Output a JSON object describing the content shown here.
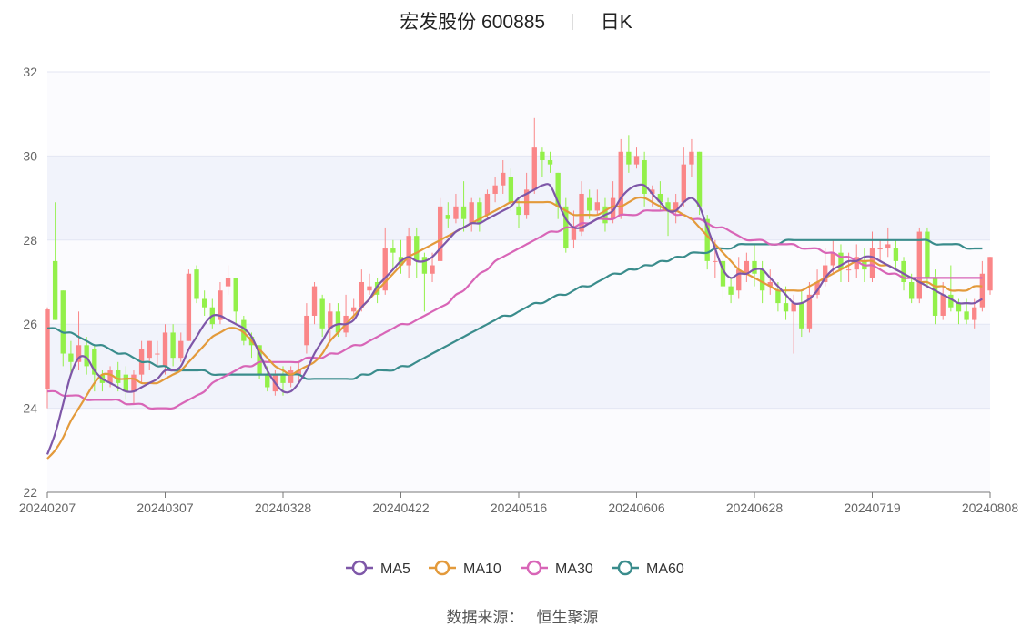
{
  "title": {
    "name": "宏发股份",
    "code": "600885",
    "period": "日K"
  },
  "source": {
    "label": "数据来源：",
    "value": "恒生聚源"
  },
  "colors": {
    "up": "#fa8688",
    "down": "#93f04a",
    "grid": "#e3e6f3",
    "band": "#f1f3fb",
    "axis": "#666666"
  },
  "chart_data": {
    "type": "candlestick",
    "ylim": [
      22,
      32
    ],
    "yticks": [
      22,
      24,
      26,
      28,
      30,
      32
    ],
    "xticks": [
      "20240207",
      "20240307",
      "20240328",
      "20240422",
      "20240516",
      "20240606",
      "20240628",
      "20240719",
      "20240808"
    ],
    "grid": true,
    "legend_position": "bottom",
    "candles": [
      [
        24.45,
        26.35,
        26.4,
        24.0
      ],
      [
        27.5,
        26.1,
        28.9,
        26.1
      ],
      [
        26.8,
        25.3,
        26.8,
        25.0
      ],
      [
        25.3,
        25.1,
        25.6,
        24.8
      ],
      [
        25.1,
        25.5,
        26.3,
        24.9
      ],
      [
        25.5,
        25.0,
        25.7,
        24.8
      ],
      [
        25.4,
        24.8,
        25.5,
        24.4
      ],
      [
        24.8,
        24.6,
        24.9,
        24.4
      ],
      [
        24.6,
        24.9,
        25.0,
        24.5
      ],
      [
        24.9,
        24.6,
        25.1,
        24.4
      ],
      [
        24.8,
        24.4,
        25.0,
        24.2
      ],
      [
        24.4,
        24.8,
        24.9,
        24.1
      ],
      [
        24.8,
        25.4,
        25.6,
        24.6
      ],
      [
        25.2,
        25.6,
        25.6,
        24.9
      ],
      [
        25.3,
        25.3,
        25.6,
        25.0
      ],
      [
        25.0,
        25.8,
        26.0,
        24.8
      ],
      [
        25.8,
        25.2,
        26.0,
        25.0
      ],
      [
        25.2,
        25.6,
        25.8,
        25.1
      ],
      [
        25.6,
        27.2,
        27.3,
        25.6
      ],
      [
        27.3,
        26.6,
        27.4,
        26.5
      ],
      [
        26.6,
        26.4,
        26.8,
        26.2
      ],
      [
        26.4,
        26.0,
        26.6,
        25.9
      ],
      [
        26.1,
        26.8,
        27.0,
        26.0
      ],
      [
        26.9,
        27.1,
        27.4,
        26.7
      ],
      [
        27.1,
        26.3,
        27.1,
        26.0
      ],
      [
        26.1,
        25.6,
        26.2,
        25.5
      ],
      [
        25.7,
        25.5,
        25.8,
        25.2
      ],
      [
        25.5,
        24.8,
        25.5,
        24.7
      ],
      [
        24.8,
        24.5,
        25.0,
        24.4
      ],
      [
        24.4,
        24.8,
        24.9,
        24.3
      ],
      [
        24.8,
        24.6,
        25.0,
        24.3
      ],
      [
        24.6,
        24.9,
        25.0,
        24.5
      ],
      [
        24.8,
        24.9,
        25.1,
        24.6
      ],
      [
        25.5,
        26.2,
        26.5,
        25.3
      ],
      [
        26.2,
        26.9,
        27.0,
        26.0
      ],
      [
        26.6,
        25.9,
        26.7,
        25.7
      ],
      [
        25.9,
        26.3,
        26.5,
        25.6
      ],
      [
        26.3,
        25.8,
        26.5,
        25.7
      ],
      [
        25.8,
        26.2,
        26.7,
        25.7
      ],
      [
        26.3,
        26.4,
        26.6,
        26.1
      ],
      [
        26.4,
        27.0,
        27.3,
        26.3
      ],
      [
        26.8,
        26.9,
        27.2,
        26.7
      ],
      [
        27.0,
        26.7,
        27.1,
        26.5
      ],
      [
        26.8,
        27.8,
        28.3,
        26.7
      ],
      [
        27.8,
        27.7,
        28.0,
        27.3
      ],
      [
        27.6,
        27.4,
        28.0,
        27.2
      ],
      [
        27.4,
        28.1,
        28.3,
        27.1
      ],
      [
        28.1,
        27.5,
        28.3,
        27.1
      ],
      [
        27.6,
        27.2,
        27.7,
        26.3
      ],
      [
        27.2,
        27.4,
        27.7,
        27.0
      ],
      [
        27.5,
        28.8,
        29.0,
        27.5
      ],
      [
        28.6,
        28.5,
        28.9,
        28.3
      ],
      [
        28.5,
        28.8,
        29.1,
        28.4
      ],
      [
        28.8,
        28.5,
        29.4,
        28.2
      ],
      [
        28.4,
        28.9,
        29.0,
        28.2
      ],
      [
        28.9,
        28.4,
        29.0,
        28.2
      ],
      [
        28.6,
        29.1,
        29.2,
        28.5
      ],
      [
        29.1,
        29.3,
        29.5,
        28.9
      ],
      [
        29.3,
        29.6,
        29.9,
        29.1
      ],
      [
        29.5,
        28.9,
        29.7,
        28.7
      ],
      [
        28.8,
        28.6,
        29.0,
        28.3
      ],
      [
        28.6,
        29.2,
        29.6,
        28.5
      ],
      [
        29.2,
        30.2,
        30.9,
        29.1
      ],
      [
        30.1,
        29.9,
        30.2,
        29.5
      ],
      [
        29.9,
        29.8,
        30.1,
        29.6
      ],
      [
        29.6,
        28.8,
        29.6,
        28.5
      ],
      [
        28.8,
        27.8,
        29.0,
        27.7
      ],
      [
        28.0,
        28.3,
        28.7,
        27.8
      ],
      [
        28.2,
        29.1,
        29.4,
        28.1
      ],
      [
        29.0,
        28.7,
        29.2,
        28.5
      ],
      [
        28.7,
        28.9,
        29.2,
        28.6
      ],
      [
        28.8,
        28.4,
        29.0,
        28.2
      ],
      [
        28.5,
        29.0,
        29.4,
        28.4
      ],
      [
        28.6,
        30.1,
        30.4,
        28.5
      ],
      [
        30.1,
        29.8,
        30.5,
        29.6
      ],
      [
        29.8,
        30.0,
        30.2,
        29.7
      ],
      [
        29.9,
        29.1,
        30.1,
        28.8
      ],
      [
        29.1,
        29.2,
        29.3,
        28.8
      ],
      [
        29.1,
        28.9,
        29.4,
        28.7
      ],
      [
        28.9,
        28.7,
        29.0,
        28.1
      ],
      [
        28.7,
        28.9,
        29.1,
        28.4
      ],
      [
        28.9,
        29.8,
        30.2,
        28.8
      ],
      [
        29.8,
        30.1,
        30.4,
        29.5
      ],
      [
        30.1,
        28.8,
        30.1,
        28.6
      ],
      [
        28.5,
        27.5,
        28.6,
        27.3
      ],
      [
        27.5,
        27.5,
        28.0,
        27.1
      ],
      [
        27.5,
        26.9,
        27.6,
        26.6
      ],
      [
        26.9,
        26.7,
        27.1,
        26.5
      ],
      [
        26.8,
        27.3,
        27.6,
        26.6
      ],
      [
        27.2,
        27.5,
        27.7,
        27.0
      ],
      [
        27.5,
        27.2,
        27.9,
        26.9
      ],
      [
        27.3,
        26.8,
        27.5,
        26.5
      ],
      [
        26.9,
        27.0,
        27.3,
        26.7
      ],
      [
        26.8,
        26.5,
        27.0,
        26.3
      ],
      [
        26.5,
        26.3,
        26.9,
        26.1
      ],
      [
        26.3,
        26.5,
        26.7,
        25.3
      ],
      [
        26.5,
        25.9,
        26.8,
        25.7
      ],
      [
        25.9,
        26.7,
        27.0,
        25.8
      ],
      [
        26.7,
        27.0,
        27.3,
        26.6
      ],
      [
        27.0,
        27.4,
        27.8,
        26.9
      ],
      [
        27.4,
        27.7,
        28.0,
        27.2
      ],
      [
        27.7,
        27.3,
        27.9,
        27.0
      ],
      [
        27.3,
        27.3,
        27.7,
        27.0
      ],
      [
        27.3,
        27.6,
        27.9,
        27.1
      ],
      [
        27.5,
        27.3,
        27.8,
        27.0
      ],
      [
        27.1,
        27.8,
        28.2,
        27.0
      ],
      [
        27.8,
        27.8,
        28.0,
        27.5
      ],
      [
        27.8,
        27.9,
        28.3,
        27.6
      ],
      [
        27.8,
        27.5,
        28.0,
        27.3
      ],
      [
        27.5,
        27.0,
        27.6,
        26.8
      ],
      [
        27.0,
        26.6,
        27.2,
        26.5
      ],
      [
        26.6,
        28.2,
        28.3,
        26.5
      ],
      [
        28.2,
        27.1,
        28.3,
        26.9
      ],
      [
        27.1,
        26.2,
        27.3,
        26.0
      ],
      [
        26.2,
        26.7,
        27.0,
        26.1
      ],
      [
        26.7,
        26.4,
        27.4,
        26.3
      ],
      [
        26.5,
        26.3,
        26.6,
        26.0
      ],
      [
        26.3,
        26.1,
        26.6,
        26.0
      ],
      [
        26.1,
        26.4,
        26.6,
        25.9
      ],
      [
        26.4,
        27.2,
        27.5,
        26.3
      ],
      [
        26.8,
        27.6,
        27.6,
        26.7
      ]
    ],
    "series": [
      {
        "name": "MA5",
        "color": "#7e57a8",
        "values": [
          22.9,
          23.4,
          24.1,
          24.8,
          25.2,
          25.2,
          24.9,
          24.7,
          24.6,
          24.5,
          24.4,
          24.4,
          24.5,
          24.6,
          24.7,
          24.9,
          24.9,
          25.0,
          25.4,
          25.7,
          26.0,
          26.2,
          26.2,
          26.1,
          26.0,
          25.9,
          25.7,
          25.3,
          24.9,
          24.6,
          24.4,
          24.4,
          24.6,
          24.9,
          25.3,
          25.6,
          25.9,
          26.0,
          26.0,
          26.1,
          26.4,
          26.6,
          26.9,
          27.1,
          27.3,
          27.5,
          27.6,
          27.5,
          27.5,
          27.6,
          27.8,
          28.0,
          28.2,
          28.3,
          28.4,
          28.4,
          28.5,
          28.6,
          28.7,
          28.8,
          29.0,
          29.1,
          29.2,
          29.3,
          29.3,
          28.9,
          28.5,
          28.3,
          28.3,
          28.4,
          28.5,
          28.6,
          28.7,
          29.0,
          29.2,
          29.3,
          29.3,
          29.1,
          28.9,
          28.7,
          28.7,
          28.9,
          29.0,
          28.8,
          28.3,
          27.8,
          27.3,
          27.1,
          27.2,
          27.2,
          27.3,
          27.3,
          27.1,
          26.9,
          26.7,
          26.5,
          26.5,
          26.6,
          26.8,
          27.1,
          27.3,
          27.4,
          27.5,
          27.5,
          27.6,
          27.6,
          27.5,
          27.4,
          27.3,
          27.2,
          27.1,
          27.0,
          26.9,
          26.8,
          26.7,
          26.6,
          26.5,
          26.5,
          26.5,
          26.6
        ]
      },
      {
        "name": "MA10",
        "color": "#e39a3b",
        "values": [
          22.8,
          23.0,
          23.3,
          23.7,
          24.0,
          24.3,
          24.6,
          24.8,
          24.8,
          24.7,
          24.7,
          24.7,
          24.6,
          24.6,
          24.6,
          24.7,
          24.8,
          24.9,
          25.1,
          25.3,
          25.5,
          25.7,
          25.8,
          25.9,
          25.9,
          25.8,
          25.6,
          25.4,
          25.2,
          25.0,
          24.9,
          24.8,
          24.9,
          25.0,
          25.1,
          25.3,
          25.6,
          25.8,
          26.0,
          26.2,
          26.4,
          26.6,
          26.8,
          27.0,
          27.2,
          27.4,
          27.6,
          27.7,
          27.8,
          27.9,
          28.0,
          28.1,
          28.2,
          28.3,
          28.4,
          28.5,
          28.6,
          28.7,
          28.8,
          28.9,
          28.9,
          28.9,
          28.9,
          28.9,
          28.9,
          28.8,
          28.7,
          28.6,
          28.6,
          28.6,
          28.6,
          28.7,
          28.8,
          28.8,
          28.9,
          29.0,
          29.0,
          28.9,
          28.8,
          28.7,
          28.7,
          28.6,
          28.5,
          28.3,
          28.1,
          27.9,
          27.7,
          27.5,
          27.3,
          27.2,
          27.1,
          27.0,
          26.9,
          26.8,
          26.8,
          26.8,
          26.8,
          26.9,
          27.0,
          27.1,
          27.2,
          27.3,
          27.4,
          27.5,
          27.5,
          27.5,
          27.4,
          27.4,
          27.3,
          27.2,
          27.1,
          27.0,
          27.0,
          26.9,
          26.9,
          26.8,
          26.8,
          26.8,
          26.9,
          26.9
        ]
      },
      {
        "name": "MA30",
        "color": "#d865b7",
        "values": [
          24.4,
          24.4,
          24.3,
          24.3,
          24.3,
          24.2,
          24.2,
          24.2,
          24.2,
          24.2,
          24.1,
          24.1,
          24.1,
          24.0,
          24.0,
          24.0,
          24.0,
          24.1,
          24.2,
          24.3,
          24.4,
          24.6,
          24.7,
          24.8,
          24.9,
          25.0,
          25.0,
          25.1,
          25.1,
          25.1,
          25.1,
          25.1,
          25.1,
          25.2,
          25.2,
          25.2,
          25.3,
          25.3,
          25.4,
          25.5,
          25.5,
          25.6,
          25.7,
          25.8,
          25.9,
          26.0,
          26.0,
          26.1,
          26.2,
          26.3,
          26.4,
          26.5,
          26.7,
          26.8,
          27.0,
          27.2,
          27.3,
          27.5,
          27.6,
          27.7,
          27.8,
          27.9,
          28.0,
          28.1,
          28.2,
          28.2,
          28.3,
          28.3,
          28.4,
          28.4,
          28.5,
          28.5,
          28.5,
          28.6,
          28.6,
          28.6,
          28.7,
          28.7,
          28.7,
          28.7,
          28.6,
          28.6,
          28.5,
          28.5,
          28.4,
          28.3,
          28.3,
          28.2,
          28.1,
          28.0,
          28.0,
          28.0,
          27.9,
          27.9,
          27.9,
          27.9,
          27.8,
          27.8,
          27.8,
          27.7,
          27.7,
          27.6,
          27.6,
          27.5,
          27.4,
          27.4,
          27.3,
          27.2,
          27.2,
          27.1,
          27.1,
          27.1,
          27.1,
          27.1,
          27.1,
          27.1,
          27.1,
          27.1,
          27.1,
          27.1
        ]
      },
      {
        "name": "MA60",
        "color": "#3a8c8c",
        "values": [
          25.9,
          25.9,
          25.8,
          25.8,
          25.7,
          25.6,
          25.5,
          25.5,
          25.4,
          25.3,
          25.3,
          25.2,
          25.1,
          25.1,
          25.0,
          25.0,
          24.9,
          24.9,
          24.9,
          24.9,
          24.9,
          24.8,
          24.8,
          24.8,
          24.8,
          24.8,
          24.8,
          24.8,
          24.8,
          24.8,
          24.8,
          24.8,
          24.8,
          24.7,
          24.7,
          24.7,
          24.7,
          24.7,
          24.7,
          24.7,
          24.8,
          24.8,
          24.9,
          24.9,
          24.9,
          25.0,
          25.0,
          25.1,
          25.2,
          25.3,
          25.4,
          25.5,
          25.6,
          25.7,
          25.8,
          25.9,
          26.0,
          26.1,
          26.2,
          26.2,
          26.3,
          26.4,
          26.5,
          26.5,
          26.6,
          26.7,
          26.7,
          26.8,
          26.9,
          26.9,
          27.0,
          27.1,
          27.2,
          27.2,
          27.3,
          27.3,
          27.4,
          27.4,
          27.5,
          27.5,
          27.6,
          27.6,
          27.7,
          27.7,
          27.7,
          27.8,
          27.8,
          27.8,
          27.9,
          27.9,
          27.9,
          27.9,
          27.9,
          27.9,
          28.0,
          28.0,
          28.0,
          28.0,
          28.0,
          28.0,
          28.0,
          28.0,
          28.0,
          28.0,
          28.0,
          28.0,
          28.0,
          28.0,
          28.0,
          28.0,
          28.0,
          28.0,
          28.0,
          27.9,
          27.9,
          27.9,
          27.9,
          27.8,
          27.8,
          27.8
        ]
      }
    ]
  }
}
